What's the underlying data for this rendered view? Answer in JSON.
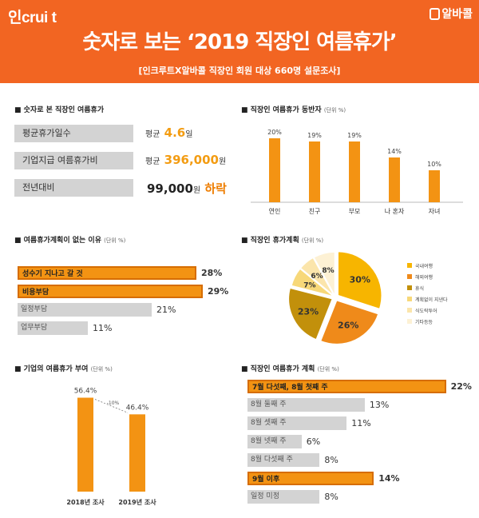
{
  "header": {
    "logo_left": "인crui t",
    "logo_right": "알바콜",
    "title": "숫자로 보는 ‘2019 직장인 여름휴가’",
    "subtitle": "[인크루트X알바콜 직장인 회원 대상 660명 설문조사]"
  },
  "stats": {
    "title": "■ 숫자로 본 직장인 여름휴가",
    "rows": [
      {
        "label": "평균휴가일수",
        "prefix": "평균",
        "value": "4.6",
        "suffix": "일"
      },
      {
        "label": "기업지급 여름휴가비",
        "prefix": "평균",
        "value": "396,000",
        "suffix": "원"
      },
      {
        "label": "전년대비",
        "value": "99,000",
        "suffix": "원",
        "tail": "하락"
      }
    ]
  },
  "colors": {
    "banner": "#f26522",
    "bar": "#f39313",
    "bar_border": "#d66d00",
    "gray": "#d3d3d3"
  },
  "chart_data": [
    {
      "type": "bar",
      "title": "■ 직장인 여름휴가 동반자",
      "unit": "(단위 %)",
      "categories": [
        "연인",
        "친구",
        "부모",
        "나 혼자",
        "자녀"
      ],
      "values": [
        20,
        19,
        19,
        14,
        10
      ],
      "value_labels": [
        "20%",
        "19%",
        "19%",
        "14%",
        "10%"
      ]
    },
    {
      "type": "bar",
      "orientation": "horizontal",
      "title": "■ 여름휴가계획이 없는 이유",
      "unit": "(단위 %)",
      "categories": [
        "성수기 지나고 갈 것",
        "비용부담",
        "일정부담",
        "업무부담"
      ],
      "values": [
        28,
        29,
        21,
        11
      ],
      "value_labels": [
        "28%",
        "29%",
        "21%",
        "11%"
      ],
      "highlight": [
        true,
        true,
        false,
        false
      ]
    },
    {
      "type": "pie",
      "title": "■ 직장인 휴가계획",
      "unit": "(단위 %)",
      "legend": [
        "국내여행",
        "해외여행",
        "휴식",
        "계획없이 지낸다",
        "식도락투어",
        "기타등등"
      ],
      "values": [
        30,
        26,
        23,
        7,
        6,
        8
      ],
      "value_labels": [
        "30%",
        "26%",
        "23%",
        "7%",
        "6%",
        "8%"
      ],
      "colors": [
        "#f7b500",
        "#ef8a1a",
        "#c2900b",
        "#f7d879",
        "#fbe5ab",
        "#fdf1d4"
      ],
      "legend_placement": "right"
    },
    {
      "type": "bar",
      "title": "■ 기업의 여름휴가 부여",
      "unit": "(단위 %)",
      "categories": [
        "2018년 조사",
        "2019년 조사"
      ],
      "values": [
        56.4,
        46.4
      ],
      "value_labels": [
        "56.4%",
        "46.4%"
      ],
      "annotation": "-10%"
    },
    {
      "type": "bar",
      "orientation": "horizontal",
      "title": "■ 직장인 여름휴가 계획",
      "unit": "(단위 %)",
      "categories": [
        "7월 다섯째, 8월 첫째 주",
        "8월 둘째 주",
        "8월 셋째 주",
        "8월 넷째 주",
        "8월 다섯째 주",
        "9월 이후",
        "일정 미정"
      ],
      "values": [
        22,
        13,
        11,
        6,
        8,
        14,
        8
      ],
      "value_labels": [
        "22%",
        "13%",
        "11%",
        "6%",
        "8%",
        "14%",
        "8%"
      ],
      "highlight": [
        true,
        false,
        false,
        false,
        false,
        true,
        false
      ]
    }
  ]
}
